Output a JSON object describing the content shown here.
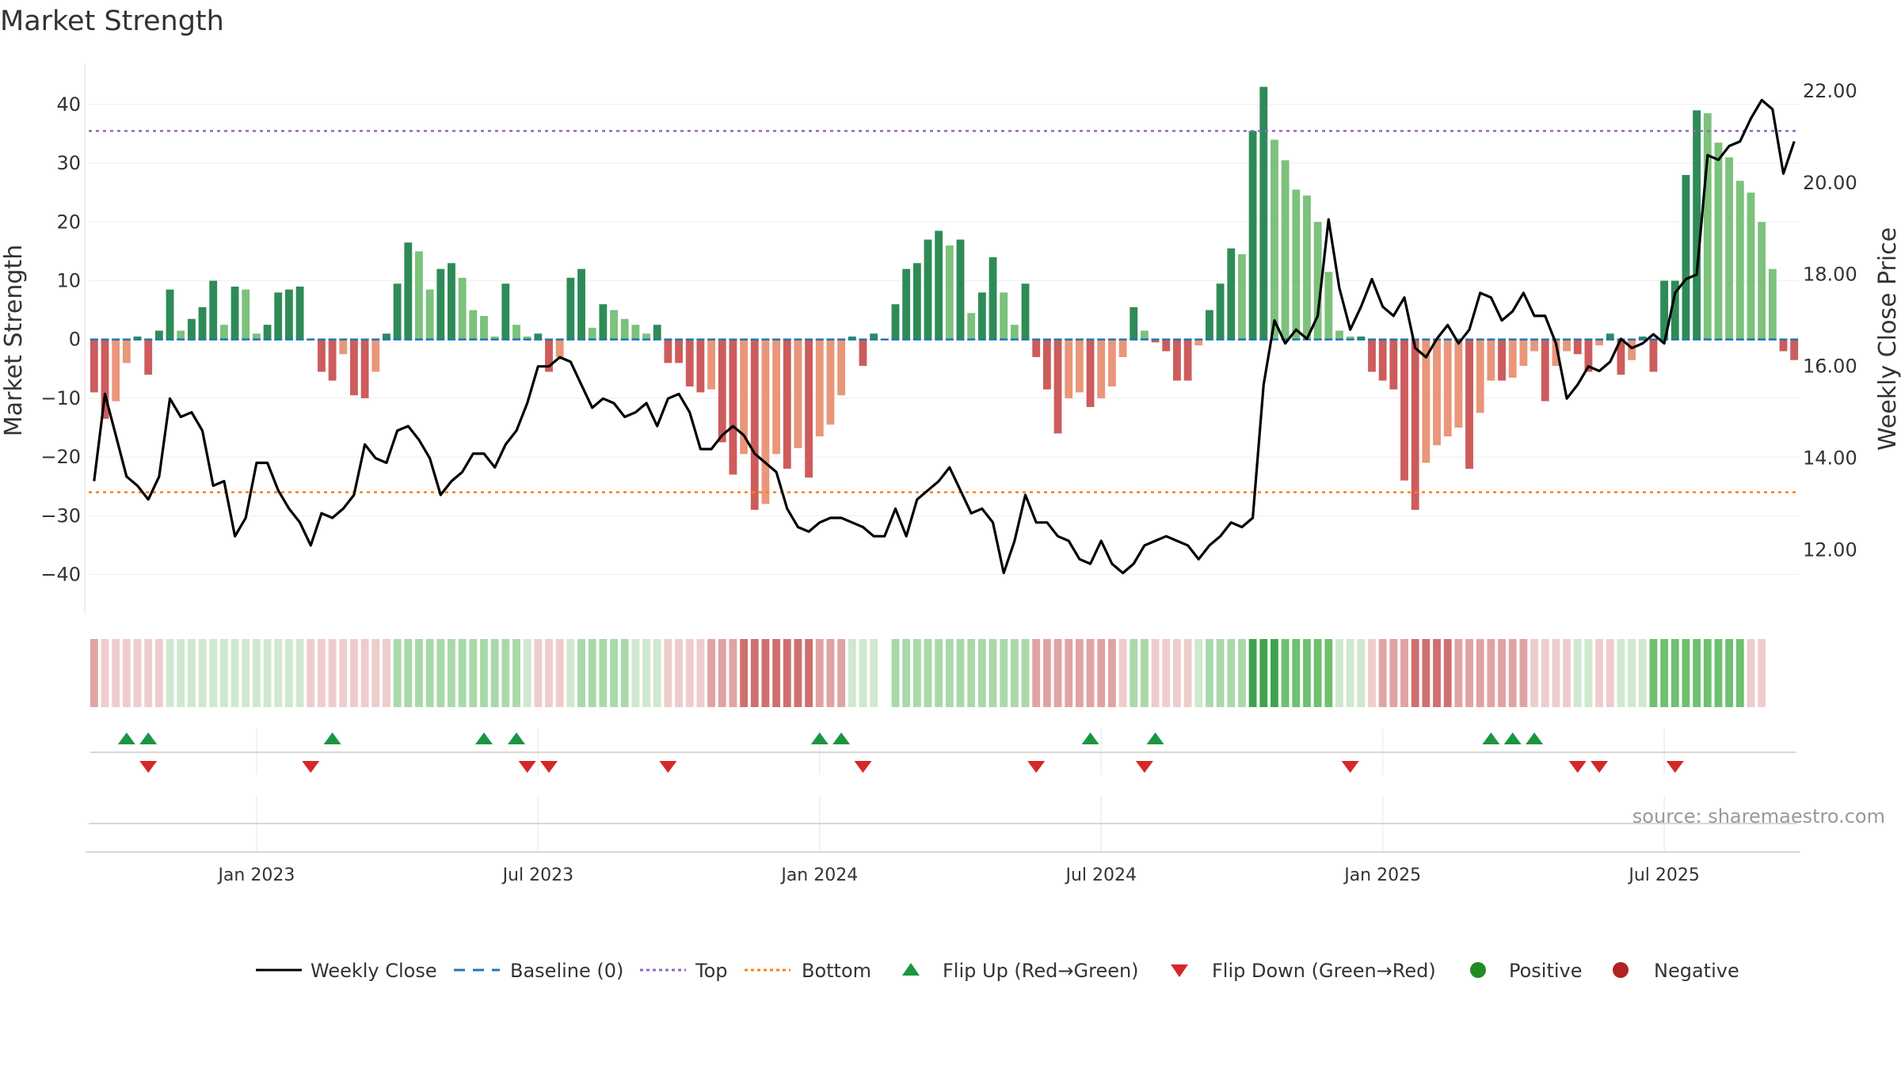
{
  "chart_data": {
    "type": "bar",
    "title": "Market Strength",
    "ylabel": "Market Strength",
    "y2label": "Weekly Close Price",
    "source": "source: sharemaestro.com",
    "ylim": [
      -46,
      47
    ],
    "y2lim": [
      10.7,
      22.6
    ],
    "yticks": [
      "40",
      "30",
      "20",
      "10",
      "0",
      "−10",
      "−20",
      "−30",
      "−40"
    ],
    "y2ticks": [
      "22.00",
      "20.00",
      "18.00",
      "16.00",
      "14.00",
      "12.00"
    ],
    "xticks": [
      "Jan 2023",
      "Jul 2023",
      "Jan 2024",
      "Jul 2024",
      "Jan 2025",
      "Jul 2025"
    ],
    "xtick_weeks": [
      15,
      41,
      67,
      93,
      119,
      145
    ],
    "top_line": 35.5,
    "bottom_line": -26,
    "colors": {
      "strong_green": "#2e8b57",
      "light_green": "#7cc17c",
      "strong_red": "#cd5c5c",
      "light_red": "#e9967a",
      "price": "#000000",
      "baseline": "#1f77b4",
      "top": "#9467bd",
      "bottom": "#ff7f0e",
      "flip_up": "#1a9641",
      "flip_down": "#d62728",
      "positive": "#228b22",
      "negative": "#b22222"
    },
    "strength": [
      -9,
      -13.5,
      -10.5,
      -4,
      0.5,
      -6,
      1.5,
      8.5,
      1.5,
      3.5,
      5.5,
      10,
      2.5,
      9,
      8.5,
      1,
      2.5,
      8,
      8.5,
      9,
      0,
      -5.5,
      -7,
      -2.5,
      -9.5,
      -10,
      -5.5,
      1,
      9.5,
      16.5,
      15,
      8.5,
      12,
      13,
      10.5,
      5,
      4,
      0.5,
      9.5,
      2.5,
      0.5,
      1,
      -5.5,
      -3,
      10.5,
      12,
      2,
      6,
      5,
      3.5,
      2.5,
      1,
      2.5,
      -4,
      -4,
      -8,
      -9,
      -8.5,
      -17.5,
      -23,
      -19.5,
      -29,
      -28,
      -19.5,
      -22,
      -18.5,
      -23.5,
      -16.5,
      -14.5,
      -9.5,
      0.5,
      -4.5,
      1,
      0,
      6,
      12,
      13,
      17,
      18.5,
      16,
      17,
      4.5,
      8,
      14,
      8,
      2.5,
      9.5,
      -3,
      -8.5,
      -16,
      -10,
      -9,
      -11.5,
      -10,
      -8,
      -3,
      5.5,
      1.5,
      -0.5,
      -2,
      -7,
      -7,
      -1,
      5,
      9.5,
      15.5,
      14.5,
      35.5,
      43,
      34,
      30.5,
      25.5,
      24.5,
      20,
      11.5,
      1.5,
      0.5,
      0.5,
      -5.5,
      -7,
      -8.5,
      -24,
      -29,
      -21,
      -18,
      -16.5,
      -15,
      -22,
      -12.5,
      -7,
      -7,
      -6.5,
      -4.5,
      -2,
      -10.5,
      -4.5,
      -2,
      -2.5,
      -5.5,
      -1,
      1,
      -6,
      -3.5,
      0.5,
      -5.5,
      10,
      10,
      28,
      39,
      38.5,
      33.5,
      31,
      27,
      25,
      20,
      12,
      -2,
      -3.5
    ],
    "price": [
      13.5,
      15.4,
      14.5,
      13.6,
      13.4,
      13.1,
      13.6,
      15.3,
      14.9,
      15.0,
      14.6,
      13.4,
      13.5,
      12.3,
      12.7,
      13.9,
      13.9,
      13.3,
      12.9,
      12.6,
      12.1,
      12.8,
      12.7,
      12.9,
      13.2,
      14.3,
      14.0,
      13.9,
      14.6,
      14.7,
      14.4,
      14.0,
      13.2,
      13.5,
      13.7,
      14.1,
      14.1,
      13.8,
      14.3,
      14.6,
      15.2,
      16.0,
      16.0,
      16.2,
      16.1,
      15.6,
      15.1,
      15.3,
      15.2,
      14.9,
      15.0,
      15.2,
      14.7,
      15.3,
      15.4,
      15.0,
      14.2,
      14.2,
      14.5,
      14.7,
      14.5,
      14.1,
      13.9,
      13.7,
      12.9,
      12.5,
      12.4,
      12.6,
      12.7,
      12.7,
      12.6,
      12.5,
      12.3,
      12.3,
      12.9,
      12.3,
      13.1,
      13.3,
      13.5,
      13.8,
      13.3,
      12.8,
      12.9,
      12.6,
      11.5,
      12.2,
      13.2,
      12.6,
      12.6,
      12.3,
      12.2,
      11.8,
      11.7,
      12.2,
      11.7,
      11.5,
      11.7,
      12.1,
      12.2,
      12.3,
      12.2,
      12.1,
      11.8,
      12.1,
      12.3,
      12.6,
      12.5,
      12.7,
      15.6,
      17.0,
      16.5,
      16.8,
      16.6,
      17.1,
      19.2,
      17.7,
      16.8,
      17.3,
      17.9,
      17.3,
      17.1,
      17.5,
      16.4,
      16.2,
      16.6,
      16.9,
      16.5,
      16.8,
      17.6,
      17.5,
      17.0,
      17.2,
      17.6,
      17.1,
      17.1,
      16.5,
      15.3,
      15.6,
      16.0,
      15.9,
      16.1,
      16.6,
      16.4,
      16.5,
      16.7,
      16.5,
      17.6,
      17.9,
      18.0,
      20.6,
      20.5,
      20.8,
      20.9,
      21.4,
      21.8,
      21.6,
      20.2,
      20.9
    ],
    "flip_up_weeks": [
      3,
      5,
      22,
      36,
      39,
      67,
      69,
      92,
      98,
      129,
      131,
      133
    ],
    "flip_down_weeks": [
      5,
      20,
      40,
      42,
      53,
      71,
      87,
      97,
      116,
      137,
      139,
      146
    ],
    "state_strength": [
      -2,
      -1,
      -1,
      -1,
      -1,
      -1,
      -1,
      1,
      1,
      1,
      1,
      1,
      1,
      1,
      1,
      1,
      1,
      1,
      1,
      1,
      -1,
      -1,
      -1,
      -1,
      -1,
      -1,
      -1,
      -1,
      2,
      2,
      2,
      2,
      2,
      2,
      2,
      2,
      2,
      2,
      2,
      2,
      1,
      -1,
      -1,
      -1,
      1,
      2,
      2,
      2,
      2,
      2,
      1,
      1,
      1,
      -1,
      -1,
      -1,
      -1,
      -2,
      -2,
      -2,
      -3,
      -3,
      -3,
      -3,
      -3,
      -3,
      -3,
      -2,
      -2,
      -2,
      1,
      1,
      1,
      0,
      2,
      2,
      2,
      2,
      2,
      2,
      2,
      2,
      2,
      2,
      2,
      2,
      2,
      -2,
      -2,
      -2,
      -2,
      -2,
      -2,
      -2,
      -2,
      -1,
      2,
      2,
      -1,
      -1,
      -1,
      -1,
      1,
      2,
      2,
      2,
      2,
      4,
      4,
      4,
      3,
      3,
      3,
      3,
      3,
      1,
      1,
      1,
      -1,
      -2,
      -2,
      -2,
      -3,
      -3,
      -3,
      -3,
      -2,
      -2,
      -2,
      -2,
      -2,
      -2,
      -2,
      -1,
      -1,
      -1,
      -1,
      1,
      1,
      -1,
      -1,
      1,
      1,
      1,
      3,
      3,
      3,
      3,
      3,
      3,
      3,
      3,
      3,
      -1,
      -1
    ]
  },
  "legend": {
    "items": [
      {
        "label": "Weekly Close",
        "kind": "line",
        "color": "#000000"
      },
      {
        "label": "Baseline (0)",
        "kind": "dash",
        "color": "#1f77b4"
      },
      {
        "label": "Top",
        "kind": "dot",
        "color": "#9467bd"
      },
      {
        "label": "Bottom",
        "kind": "dot",
        "color": "#ff7f0e"
      },
      {
        "label": "Flip Up (Red→Green)",
        "kind": "tri-up",
        "color": "#1a9641"
      },
      {
        "label": "Flip Down (Green→Red)",
        "kind": "tri-down",
        "color": "#d62728"
      },
      {
        "label": "Positive",
        "kind": "circle",
        "color": "#228b22"
      },
      {
        "label": "Negative",
        "kind": "circle",
        "color": "#b22222"
      }
    ]
  }
}
